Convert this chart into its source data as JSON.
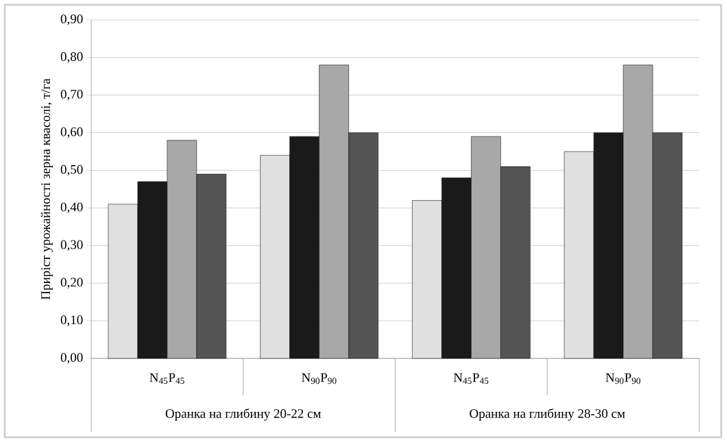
{
  "chart_data": {
    "type": "bar",
    "ylabel": "Приріст урожайності зерна квасолі, т/га",
    "categories": [
      "N$_{45}$P$_{45}$",
      "N$_{90}$P$_{90}$",
      "N$_{45}$P$_{45}$",
      "N$_{90}$P$_{90}$"
    ],
    "annotations": [
      "Оранка на глибину 20-22 см",
      "Оранка на глибину 28-30 см"
    ],
    "series": [
      {
        "color": "#e0e0e0",
        "values": [
          0.41,
          0.54,
          0.42,
          0.55
        ]
      },
      {
        "color": "#1a1a1a",
        "values": [
          0.47,
          0.59,
          0.48,
          0.6
        ]
      },
      {
        "color": "#a8a8a8",
        "values": [
          0.58,
          0.78,
          0.59,
          0.78
        ]
      },
      {
        "color": "#555555",
        "values": [
          0.49,
          0.6,
          0.51,
          0.6
        ]
      }
    ],
    "ylim": [
      0,
      0.9
    ],
    "yticks": [
      {
        "value": 0,
        "label": "0,00"
      },
      {
        "value": 0.1,
        "label": "0,10"
      },
      {
        "value": 0.2,
        "label": "0,20"
      },
      {
        "value": 0.3,
        "label": "0,30"
      },
      {
        "value": 0.4,
        "label": "0,40"
      },
      {
        "value": 0.5,
        "label": "0,50"
      },
      {
        "value": 0.6,
        "label": "0,60"
      },
      {
        "value": 0.7,
        "label": "0,70"
      },
      {
        "value": 0.8,
        "label": "0,80"
      },
      {
        "value": 0.9,
        "label": "0,90"
      }
    ],
    "grid": "y"
  }
}
